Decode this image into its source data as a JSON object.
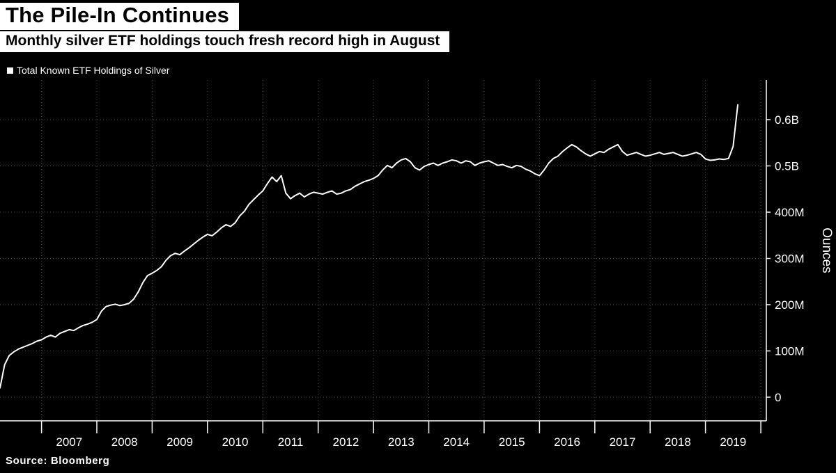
{
  "header": {
    "title": "The Pile-In Continues",
    "subtitle": "Monthly silver ETF holdings touch fresh record high in August"
  },
  "legend": {
    "label": "Total Known ETF Holdings of Silver",
    "marker_color": "#ffffff"
  },
  "source": "Source:  Bloomberg",
  "colors": {
    "background": "#000000",
    "line": "#ffffff",
    "grid": "#4d4d4d",
    "axis": "#ffffff",
    "title_bg": "#ffffff",
    "title_text": "#000000",
    "tick_text": "#ffffff"
  },
  "chart_data": {
    "type": "line",
    "title": "The Pile-In Continues",
    "subtitle": "Monthly silver ETF holdings touch fresh record high in August",
    "ylabel": "Ounces",
    "unit": "millions of ounces",
    "ylim": [
      0,
      650
    ],
    "xlim": [
      2006.25,
      2020.1
    ],
    "grid": "dotted",
    "legend_position": "top-left",
    "yticks": {
      "values": [
        0,
        100,
        200,
        300,
        400,
        500,
        600
      ],
      "labels": [
        "0",
        "100M",
        "200M",
        "300M",
        "400M",
        "0.5B",
        "0.6B"
      ]
    },
    "xticks_years": [
      2007,
      2008,
      2009,
      2010,
      2011,
      2012,
      2013,
      2014,
      2015,
      2016,
      2017,
      2018,
      2019
    ],
    "series": [
      {
        "name": "Total Known ETF Holdings of Silver",
        "start_year": 2006,
        "start_month": 4,
        "frequency": "monthly",
        "values_millions": [
          20,
          70,
          90,
          98,
          104,
          108,
          112,
          116,
          121,
          124,
          130,
          134,
          130,
          138,
          142,
          146,
          144,
          150,
          155,
          158,
          162,
          168,
          186,
          196,
          199,
          201,
          198,
          200,
          203,
          212,
          228,
          248,
          263,
          268,
          274,
          282,
          296,
          306,
          311,
          308,
          316,
          323,
          331,
          339,
          346,
          352,
          349,
          357,
          366,
          373,
          369,
          377,
          392,
          402,
          417,
          427,
          437,
          446,
          462,
          476,
          466,
          479,
          441,
          429,
          436,
          441,
          433,
          439,
          443,
          441,
          439,
          443,
          446,
          439,
          441,
          446,
          449,
          456,
          461,
          466,
          469,
          473,
          479,
          491,
          501,
          496,
          506,
          513,
          516,
          509,
          496,
          491,
          499,
          503,
          506,
          501,
          506,
          509,
          513,
          511,
          506,
          511,
          509,
          501,
          506,
          509,
          511,
          506,
          501,
          503,
          499,
          496,
          501,
          499,
          493,
          489,
          483,
          479,
          491,
          506,
          516,
          521,
          531,
          539,
          546,
          541,
          533,
          526,
          521,
          526,
          531,
          529,
          536,
          541,
          546,
          531,
          523,
          526,
          529,
          525,
          521,
          523,
          526,
          529,
          525,
          527,
          529,
          525,
          521,
          523,
          526,
          529,
          525,
          515,
          512,
          513,
          515,
          514,
          516,
          542,
          632
        ]
      }
    ]
  }
}
